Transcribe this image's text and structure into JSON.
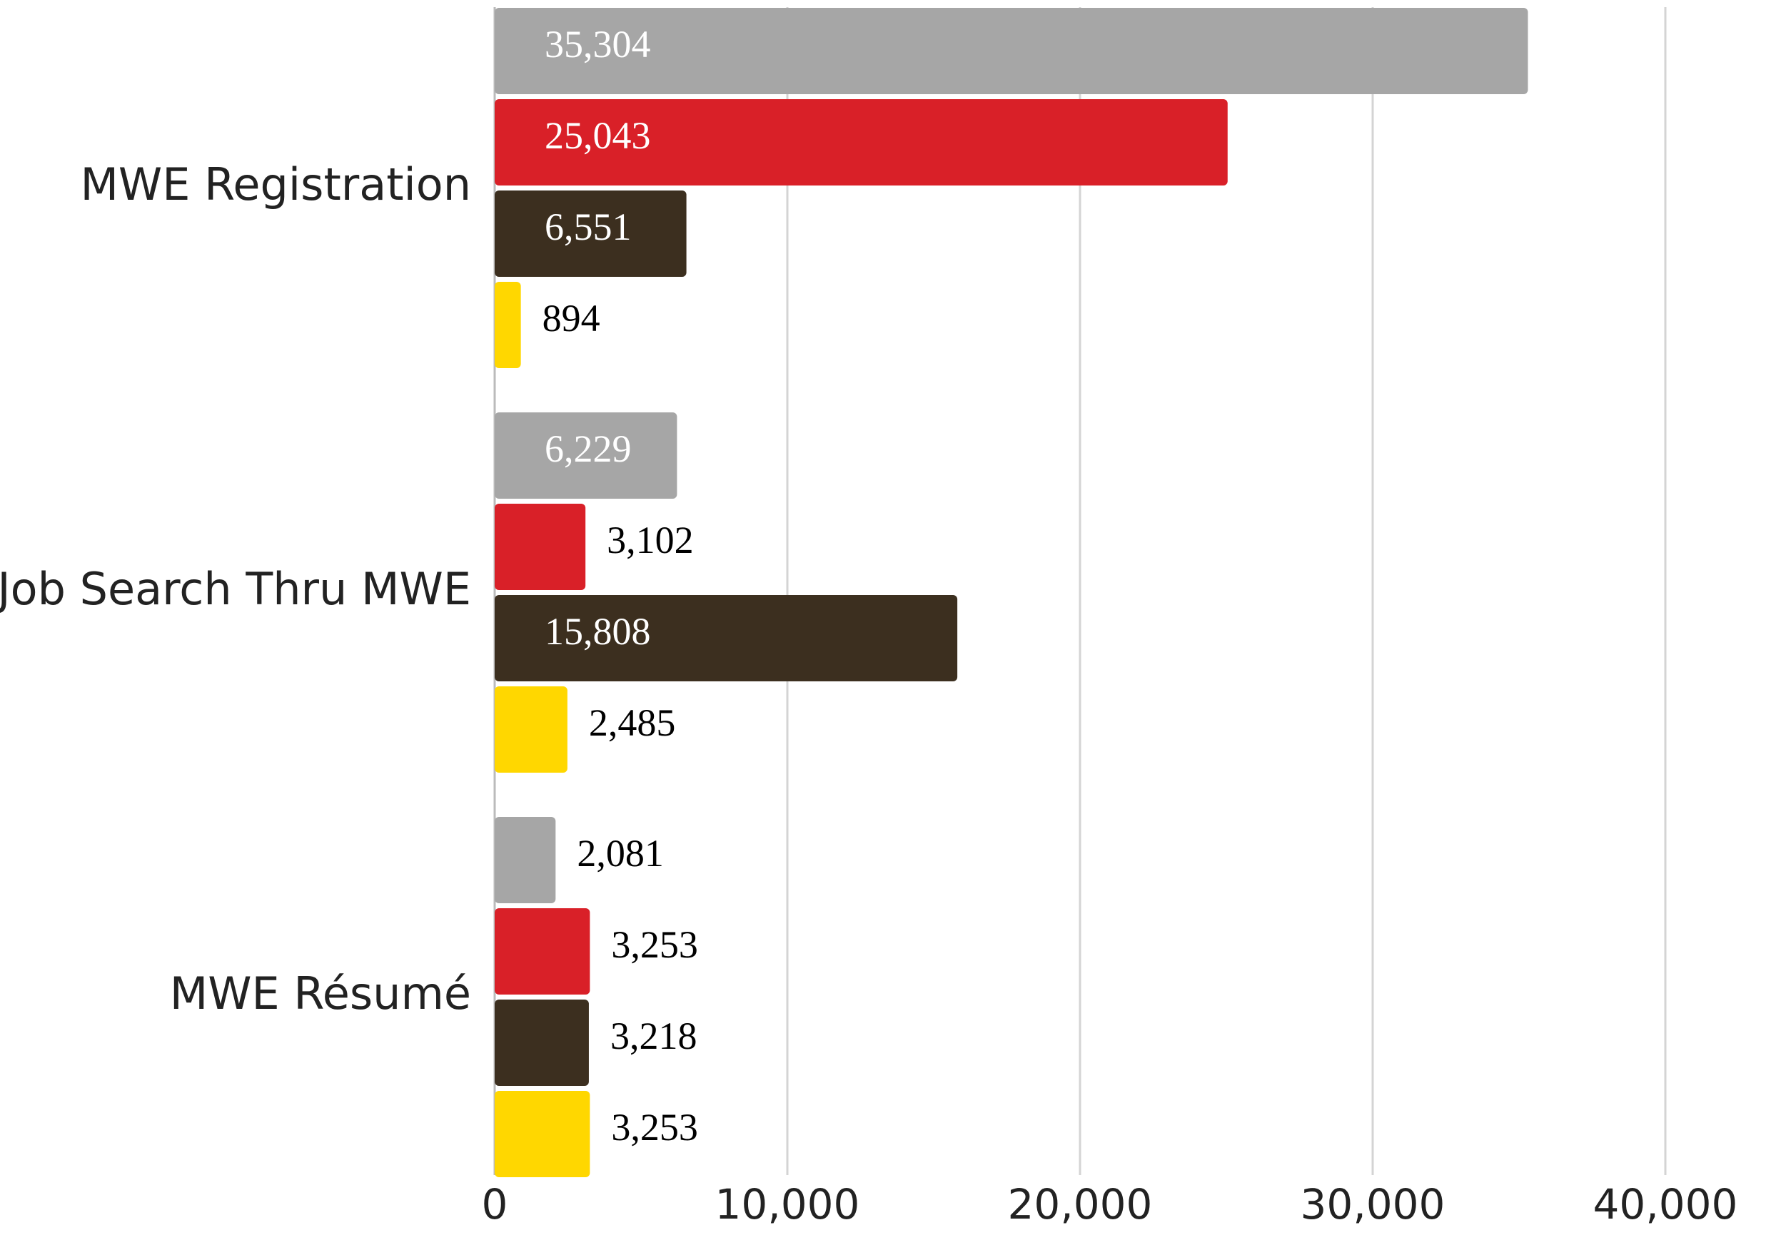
{
  "chart_data": {
    "type": "hbar",
    "categories": [
      "MWE Registration",
      "Job Search Thru MWE",
      "MWE Résumé"
    ],
    "series": [
      {
        "color": "#a6a6a6",
        "values": [
          35304,
          6229,
          2081
        ],
        "value_labels": [
          "35,304",
          "6,229",
          "2,081"
        ]
      },
      {
        "color": "#d92028",
        "values": [
          25043,
          3102,
          3253
        ],
        "value_labels": [
          "25,043",
          "3,102",
          "3,253"
        ]
      },
      {
        "color": "#3c2f1f",
        "values": [
          6551,
          15808,
          3218
        ],
        "value_labels": [
          "6,551",
          "15,808",
          "3,218"
        ]
      },
      {
        "color": "#ffd700",
        "values": [
          894,
          2485,
          3253
        ],
        "value_labels": [
          "894",
          "2,485",
          "3,253"
        ]
      }
    ],
    "xlim": [
      0,
      40000
    ],
    "xticks": [
      0,
      {
        "value": 10000,
        "label": "10,000"
      },
      {
        "value": 20000,
        "label": "20,000"
      },
      {
        "value": 30000,
        "label": "30,000"
      },
      {
        "value": 40000,
        "label": "40,000"
      }
    ],
    "grid": true
  }
}
